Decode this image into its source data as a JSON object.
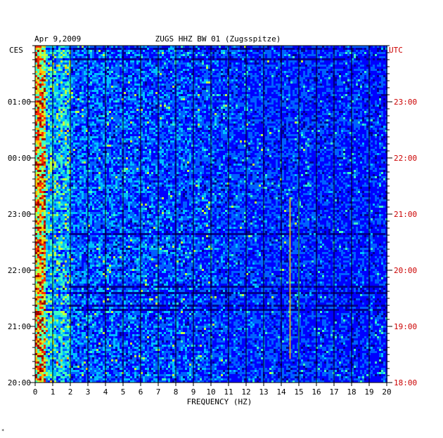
{
  "header": {
    "date": "Apr 9,2009",
    "station": "ZUGS HHZ BW 01 (Zugsspitze)",
    "left_tz": "CES",
    "right_tz": "UTC"
  },
  "footer": {
    "mark": "*"
  },
  "colors": {
    "background": "#0000a0",
    "left_axis_text": "#000000",
    "right_axis_text": "#cc0000",
    "grid": "#000000",
    "colormap": [
      "#00008f",
      "#0000ff",
      "#0060ff",
      "#00c0ff",
      "#40ffbf",
      "#c0ff40",
      "#ffc000",
      "#ff3000",
      "#a00000"
    ]
  },
  "chart_data": {
    "type": "heatmap",
    "title": "ZUGS HHZ BW 01 (Zugsspitze)",
    "xlabel": "FREQUENCY (HZ)",
    "ylabel": "",
    "xlim": [
      0,
      20
    ],
    "x_ticks": [
      "0",
      "1",
      "2",
      "3",
      "4",
      "5",
      "6",
      "7",
      "8",
      "9",
      "10",
      "11",
      "12",
      "13",
      "14",
      "15",
      "16",
      "17",
      "18",
      "19",
      "20"
    ],
    "y_left_ticks": [
      "01:00",
      "00:00",
      "23:00",
      "22:00",
      "21:00",
      "20:00"
    ],
    "y_right_ticks": [
      "23:00",
      "22:00",
      "21:00",
      "20:00",
      "19:00",
      "18:00"
    ],
    "time_range_local": [
      "20:00",
      "02:00"
    ],
    "time_range_utc": [
      "18:00",
      "00:00"
    ],
    "features": [
      {
        "frequency_hz": 0.3,
        "description": "strong low-frequency energy band"
      },
      {
        "frequency_hz": 14.5,
        "description": "narrow spectral line"
      },
      {
        "frequency_hz": 15.0,
        "description": "narrow spectral line"
      }
    ],
    "grid": true
  }
}
